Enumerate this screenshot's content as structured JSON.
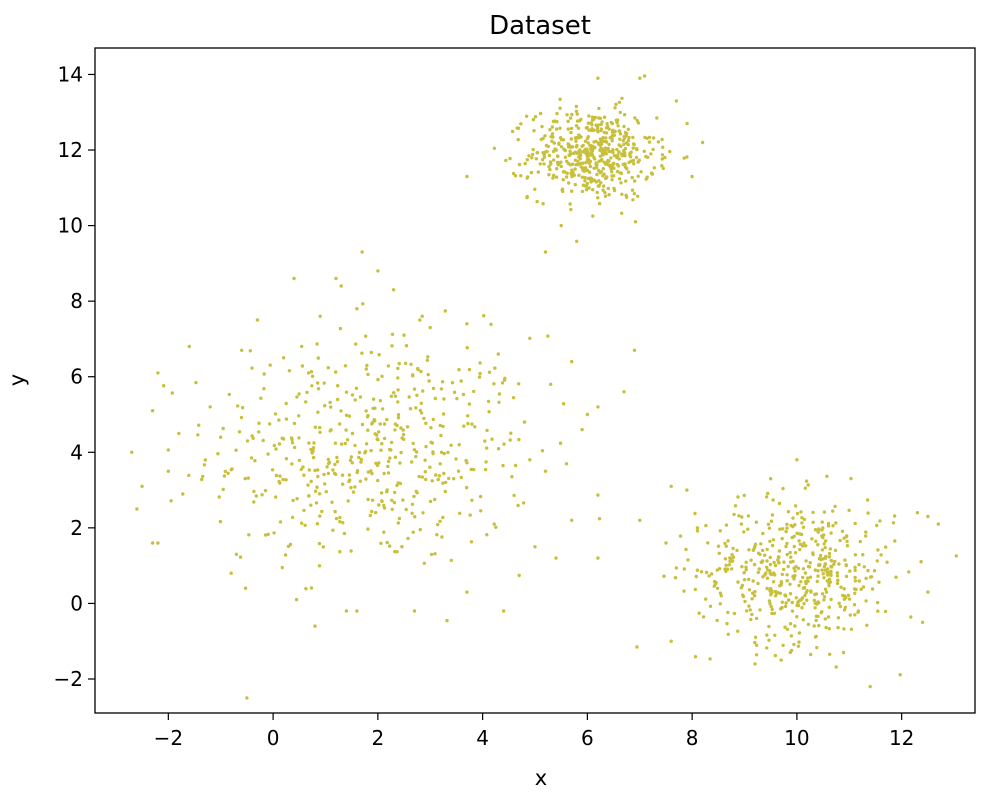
{
  "chart_data": {
    "type": "scatter",
    "title": "Dataset",
    "xlabel": "x",
    "ylabel": "y",
    "xlim": [
      -3.4,
      13.4
    ],
    "ylim": [
      -2.9,
      14.7
    ],
    "xticks": [
      -2,
      0,
      2,
      4,
      6,
      8,
      10,
      12
    ],
    "xtick_labels": [
      "−2",
      "0",
      "2",
      "4",
      "6",
      "8",
      "10",
      "12"
    ],
    "yticks": [
      -2,
      0,
      2,
      4,
      6,
      8,
      10,
      12,
      14
    ],
    "ytick_labels": [
      "−2",
      "0",
      "2",
      "4",
      "6",
      "8",
      "10",
      "12",
      "14"
    ],
    "grid": false,
    "legend": "none",
    "point_color": "#c8c03c",
    "clusters": [
      {
        "center": [
          1.9,
          4.0
        ],
        "std": 1.55,
        "count": 500
      },
      {
        "center": [
          6.1,
          11.9
        ],
        "std": 0.6,
        "count": 500
      },
      {
        "center": [
          10.0,
          0.85
        ],
        "std": 0.95,
        "count": 500
      }
    ],
    "points": [
      [
        -2.7,
        4.0
      ],
      [
        -2.2,
        6.1
      ],
      [
        -2.3,
        5.1
      ],
      [
        -2.5,
        3.1
      ],
      [
        -2.6,
        2.5
      ],
      [
        -2.3,
        1.6
      ],
      [
        -2.2,
        1.6
      ],
      [
        -1.6,
        6.8
      ],
      [
        -1.8,
        4.5
      ],
      [
        -2.0,
        3.5
      ],
      [
        -1.2,
        5.2
      ],
      [
        -1.0,
        4.4
      ],
      [
        -0.6,
        6.7
      ],
      [
        -0.7,
        1.3
      ],
      [
        -0.8,
        0.8
      ],
      [
        -0.3,
        7.5
      ],
      [
        0.4,
        8.6
      ],
      [
        0.2,
        6.5
      ],
      [
        0.9,
        7.6
      ],
      [
        0.8,
        -0.6
      ],
      [
        1.2,
        8.6
      ],
      [
        1.3,
        8.4
      ],
      [
        1.6,
        7.8
      ],
      [
        1.7,
        9.3
      ],
      [
        2.0,
        8.8
      ],
      [
        2.3,
        8.3
      ],
      [
        2.5,
        7.1
      ],
      [
        2.8,
        7.5
      ],
      [
        3.0,
        7.3
      ],
      [
        3.7,
        7.4
      ],
      [
        4.3,
        6.6
      ],
      [
        1.4,
        -0.2
      ],
      [
        1.6,
        -0.2
      ],
      [
        2.7,
        -0.2
      ],
      [
        4.4,
        -0.2
      ],
      [
        3.7,
        0.3
      ],
      [
        4.8,
        4.8
      ],
      [
        4.9,
        3.8
      ],
      [
        5.2,
        3.5
      ],
      [
        5.3,
        5.8
      ],
      [
        5.2,
        9.3
      ],
      [
        5.0,
        1.5
      ],
      [
        5.4,
        1.2
      ],
      [
        5.7,
        2.2
      ],
      [
        5.9,
        4.6
      ],
      [
        6.0,
        5.0
      ],
      [
        5.7,
        6.4
      ],
      [
        6.2,
        5.2
      ],
      [
        6.2,
        1.2
      ],
      [
        6.9,
        6.7
      ],
      [
        7.0,
        2.2
      ],
      [
        6.7,
        5.6
      ],
      [
        3.7,
        11.3
      ],
      [
        7.5,
        1.6
      ],
      [
        8.2,
        12.2
      ],
      [
        7.0,
        13.9
      ],
      [
        7.7,
        13.3
      ],
      [
        6.2,
        13.9
      ],
      [
        5.5,
        10.0
      ],
      [
        8.0,
        11.3
      ],
      [
        7.6,
        -1.0
      ],
      [
        11.4,
        -2.2
      ],
      [
        9.2,
        -1.6
      ],
      [
        9.7,
        -1.5
      ],
      [
        12.4,
        -0.5
      ],
      [
        12.7,
        2.1
      ],
      [
        12.5,
        2.3
      ],
      [
        12.3,
        2.4
      ],
      [
        10.0,
        3.8
      ],
      [
        9.5,
        3.3
      ],
      [
        7.9,
        3.0
      ],
      [
        7.6,
        3.1
      ],
      [
        8.1,
        2.0
      ],
      [
        12.5,
        0.3
      ]
    ]
  }
}
